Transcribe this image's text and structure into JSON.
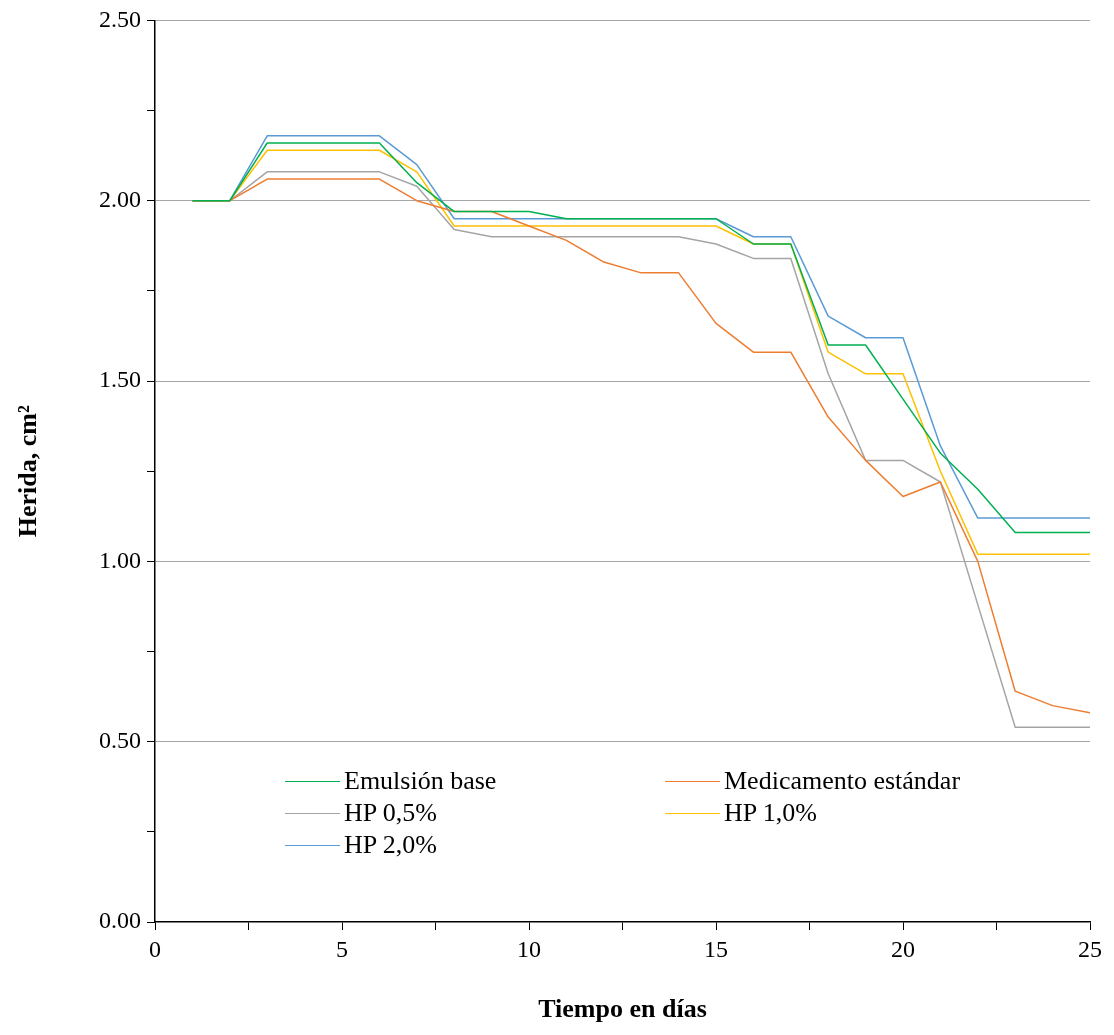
{
  "chart_data": {
    "type": "line",
    "xlabel": "Tiempo en días",
    "ylabel": "Herida, cm²",
    "x": [
      1,
      2,
      3,
      4,
      5,
      6,
      7,
      8,
      9,
      10,
      11,
      12,
      13,
      14,
      15,
      16,
      17,
      18,
      19,
      20,
      21,
      22,
      23,
      24,
      25
    ],
    "series": [
      {
        "name": "Emulsión base",
        "color": "#00b050",
        "values": [
          2.0,
          2.0,
          2.16,
          2.16,
          2.16,
          2.16,
          2.05,
          1.97,
          1.97,
          1.97,
          1.95,
          1.95,
          1.95,
          1.95,
          1.95,
          1.88,
          1.88,
          1.6,
          1.6,
          1.45,
          1.3,
          1.2,
          1.08,
          1.08,
          1.08
        ]
      },
      {
        "name": "Medicamento estándar",
        "color": "#ed7d31",
        "values": [
          2.0,
          2.0,
          2.06,
          2.06,
          2.06,
          2.06,
          2.0,
          1.97,
          1.97,
          1.93,
          1.89,
          1.83,
          1.8,
          1.8,
          1.66,
          1.58,
          1.58,
          1.4,
          1.28,
          1.18,
          1.22,
          1.0,
          0.64,
          0.6,
          0.58
        ]
      },
      {
        "name": "HP 0,5%",
        "color": "#a5a5a5",
        "values": [
          2.0,
          2.0,
          2.08,
          2.08,
          2.08,
          2.08,
          2.04,
          1.92,
          1.9,
          1.9,
          1.9,
          1.9,
          1.9,
          1.9,
          1.88,
          1.84,
          1.84,
          1.52,
          1.28,
          1.28,
          1.22,
          0.88,
          0.54,
          0.54,
          0.54
        ]
      },
      {
        "name": "HP 1,0%",
        "color": "#ffc000",
        "values": [
          2.0,
          2.0,
          2.14,
          2.14,
          2.14,
          2.14,
          2.08,
          1.93,
          1.93,
          1.93,
          1.93,
          1.93,
          1.93,
          1.93,
          1.93,
          1.88,
          1.88,
          1.58,
          1.52,
          1.52,
          1.25,
          1.02,
          1.02,
          1.02,
          1.02
        ]
      },
      {
        "name": "HP 2,0%",
        "color": "#5b9bd5",
        "values": [
          2.0,
          2.0,
          2.18,
          2.18,
          2.18,
          2.18,
          2.1,
          1.95,
          1.95,
          1.95,
          1.95,
          1.95,
          1.95,
          1.95,
          1.95,
          1.9,
          1.9,
          1.68,
          1.62,
          1.62,
          1.32,
          1.12,
          1.12,
          1.12,
          1.12
        ]
      }
    ],
    "xlim": [
      0,
      25
    ],
    "xticks": [
      0,
      {
        "value": 2.5,
        "label": null
      },
      5,
      {
        "value": 7.5,
        "label": null
      },
      10,
      {
        "value": 12.5,
        "label": null
      },
      15,
      {
        "value": 17.5,
        "label": null
      },
      20,
      {
        "value": 22.5,
        "label": null
      },
      25
    ],
    "ylim": [
      0,
      2.5
    ],
    "yticks": [
      {
        "value": 0,
        "label": "0.00"
      },
      {
        "value": 0.25,
        "label": null
      },
      {
        "value": 0.5,
        "label": "0.50"
      },
      {
        "value": 0.75,
        "label": null
      },
      {
        "value": 1,
        "label": "1.00"
      },
      {
        "value": 1.25,
        "label": null
      },
      {
        "value": 1.5,
        "label": "1.50"
      },
      {
        "value": 1.75,
        "label": null
      },
      {
        "value": 2,
        "label": "2.00"
      },
      {
        "value": 2.25,
        "label": null
      },
      {
        "value": 2.5,
        "label": "2.50"
      }
    ],
    "grid": "y",
    "legend": "bottom left",
    "marker": "none",
    "line_style": "solid"
  }
}
